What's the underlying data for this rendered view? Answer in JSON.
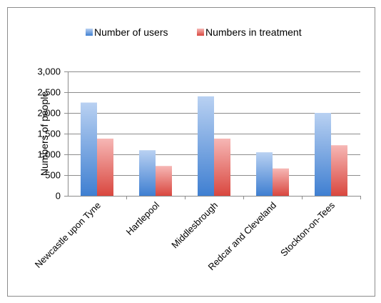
{
  "chart_data": {
    "type": "bar",
    "title": "",
    "xlabel": "",
    "ylabel": "Numbers of people",
    "ylim": [
      0,
      3000
    ],
    "yticks": [
      0,
      500,
      1000,
      1500,
      2000,
      2500,
      3000
    ],
    "ytick_labels": [
      "0",
      "500",
      "1,000",
      "1,500",
      "2,000",
      "2,500",
      "3,000"
    ],
    "grid": true,
    "legend_position": "top",
    "categories": [
      "Newcastle upon Tyne",
      "Hartlepool",
      "Middlesbrough",
      "Redcar and Cleveland",
      "Stockton-on-Tees"
    ],
    "series": [
      {
        "name": "Number of users",
        "values": [
          2250,
          1100,
          2400,
          1050,
          2000
        ],
        "color": "#4A7EBB"
      },
      {
        "name": "Numbers in treatment",
        "values": [
          1380,
          720,
          1380,
          660,
          1220
        ],
        "color": "#D9534F"
      }
    ]
  }
}
